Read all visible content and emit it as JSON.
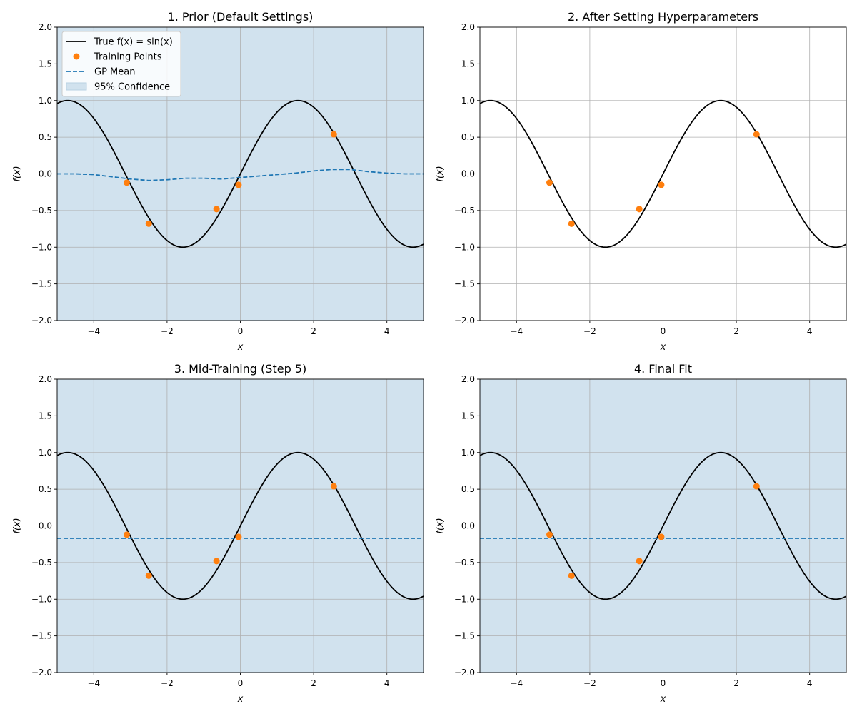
{
  "chart_data": [
    {
      "type": "line",
      "title": "1. Prior (Default Settings)",
      "xlabel": "x",
      "ylabel": "f(x)",
      "xlim": [
        -5,
        5
      ],
      "ylim": [
        -2,
        2
      ],
      "xticks": [
        -4,
        -2,
        0,
        2,
        4
      ],
      "yticks": [
        -2.0,
        -1.5,
        -1.0,
        -0.5,
        0.0,
        0.5,
        1.0,
        1.5,
        2.0
      ],
      "grid": true,
      "legend": {
        "location": "upper-left",
        "entries": [
          "True f(x) = sin(x)",
          "Training Points",
          "GP Mean",
          "95% Confidence"
        ]
      },
      "confidence_band": {
        "shown": true,
        "covers_full_view": true,
        "color": "#d1e2ee"
      },
      "training_points": {
        "x": [
          -3.1,
          -2.5,
          -0.65,
          -0.05,
          2.55
        ],
        "y": [
          -0.12,
          -0.68,
          -0.48,
          -0.15,
          0.54
        ],
        "color": "#ff7f0e"
      },
      "true_function": "sin(x)",
      "gp_mean": {
        "x": [
          -5,
          -4.5,
          -4,
          -3.5,
          -3,
          -2.5,
          -2,
          -1.5,
          -1,
          -0.5,
          0,
          0.5,
          1,
          1.5,
          2,
          2.5,
          3,
          3.5,
          4,
          4.5,
          5
        ],
        "y": [
          0.0,
          0.0,
          -0.01,
          -0.04,
          -0.07,
          -0.09,
          -0.08,
          -0.06,
          -0.06,
          -0.07,
          -0.05,
          -0.03,
          -0.01,
          0.01,
          0.04,
          0.06,
          0.06,
          0.03,
          0.01,
          0.0,
          0.0
        ],
        "color": "#1f77b4"
      }
    },
    {
      "type": "line",
      "title": "2. After Setting Hyperparameters",
      "xlabel": "x",
      "ylabel": "f(x)",
      "xlim": [
        -5,
        5
      ],
      "ylim": [
        -2,
        2
      ],
      "xticks": [
        -4,
        -2,
        0,
        2,
        4
      ],
      "yticks": [
        -2.0,
        -1.5,
        -1.0,
        -0.5,
        0.0,
        0.5,
        1.0,
        1.5,
        2.0
      ],
      "grid": true,
      "confidence_band": {
        "shown": false,
        "covers_full_view": false,
        "color": "#d1e2ee"
      },
      "training_points": {
        "x": [
          -3.1,
          -2.5,
          -0.65,
          -0.05,
          2.55
        ],
        "y": [
          -0.12,
          -0.68,
          -0.48,
          -0.15,
          0.54
        ],
        "color": "#ff7f0e"
      },
      "true_function": "sin(x)"
    },
    {
      "type": "line",
      "title": "3. Mid-Training (Step 5)",
      "xlabel": "x",
      "ylabel": "f(x)",
      "xlim": [
        -5,
        5
      ],
      "ylim": [
        -2,
        2
      ],
      "xticks": [
        -4,
        -2,
        0,
        2,
        4
      ],
      "yticks": [
        -2.0,
        -1.5,
        -1.0,
        -0.5,
        0.0,
        0.5,
        1.0,
        1.5,
        2.0
      ],
      "grid": true,
      "confidence_band": {
        "shown": true,
        "covers_full_view": true,
        "color": "#d1e2ee"
      },
      "training_points": {
        "x": [
          -3.1,
          -2.5,
          -0.65,
          -0.05,
          2.55
        ],
        "y": [
          -0.12,
          -0.68,
          -0.48,
          -0.15,
          0.54
        ],
        "color": "#ff7f0e"
      },
      "true_function": "sin(x)",
      "gp_mean": {
        "x": [
          -5,
          5
        ],
        "y": [
          -0.17,
          -0.17
        ],
        "color": "#1f77b4"
      }
    },
    {
      "type": "line",
      "title": "4. Final Fit",
      "xlabel": "x",
      "ylabel": "f(x)",
      "xlim": [
        -5,
        5
      ],
      "ylim": [
        -2,
        2
      ],
      "xticks": [
        -4,
        -2,
        0,
        2,
        4
      ],
      "yticks": [
        -2.0,
        -1.5,
        -1.0,
        -0.5,
        0.0,
        0.5,
        1.0,
        1.5,
        2.0
      ],
      "grid": true,
      "confidence_band": {
        "shown": true,
        "covers_full_view": true,
        "color": "#d1e2ee"
      },
      "training_points": {
        "x": [
          -3.1,
          -2.5,
          -0.65,
          -0.05,
          2.55
        ],
        "y": [
          -0.12,
          -0.68,
          -0.48,
          -0.15,
          0.54
        ],
        "color": "#ff7f0e"
      },
      "true_function": "sin(x)",
      "gp_mean": {
        "x": [
          -5,
          5
        ],
        "y": [
          -0.17,
          -0.17
        ],
        "color": "#1f77b4"
      }
    }
  ]
}
